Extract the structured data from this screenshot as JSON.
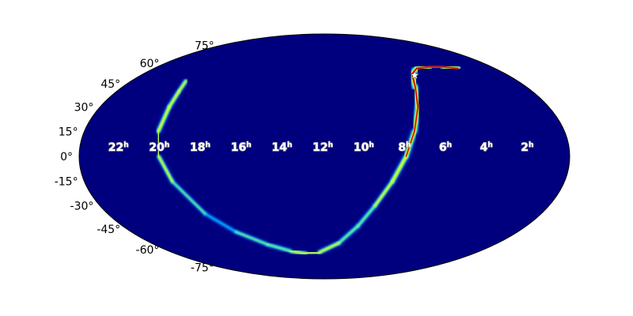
{
  "chart_data": {
    "type": "heatmap",
    "projection": "mollweide",
    "title": "",
    "xlabel": "",
    "ylabel": "",
    "x_axis": {
      "quantity": "right ascension (hours)",
      "direction": "decreasing to the right",
      "ticks": [
        22,
        20,
        18,
        16,
        14,
        12,
        10,
        8,
        6,
        4,
        2
      ],
      "tick_labels": [
        {
          "main": "22",
          "sup": "h"
        },
        {
          "main": "20",
          "sup": "h"
        },
        {
          "main": "18",
          "sup": "h"
        },
        {
          "main": "16",
          "sup": "h"
        },
        {
          "main": "14",
          "sup": "h"
        },
        {
          "main": "12",
          "sup": "h"
        },
        {
          "main": "10",
          "sup": "h"
        },
        {
          "main": "8",
          "sup": "h"
        },
        {
          "main": "6",
          "sup": "h"
        },
        {
          "main": "4",
          "sup": "h"
        },
        {
          "main": "2",
          "sup": "h"
        }
      ],
      "range": [
        24,
        0
      ]
    },
    "y_axis": {
      "quantity": "declination (degrees)",
      "ticks": [
        75,
        60,
        45,
        30,
        15,
        0,
        -15,
        -30,
        -45,
        -60,
        -75
      ],
      "tick_labels": [
        "75°",
        "60°",
        "45°",
        "30°",
        "15°",
        "0°",
        "-15°",
        "-30°",
        "-45°",
        "-60°",
        "-75°"
      ],
      "range": [
        -90,
        90
      ]
    },
    "grid": false,
    "colormap": "jet",
    "background_color": "#00007f",
    "band": {
      "description": "probability ring",
      "points": [
        {
          "ra": 2.6,
          "dec": 56,
          "w": 0.9
        },
        {
          "ra": 3.5,
          "dec": 57,
          "w": 0.9
        },
        {
          "ra": 4.5,
          "dec": 57,
          "w": 1.0
        },
        {
          "ra": 5.5,
          "dec": 56,
          "w": 1.0
        },
        {
          "ra": 6.2,
          "dec": 52,
          "w": 1.0
        },
        {
          "ra": 6.6,
          "dec": 43,
          "w": 1.0
        },
        {
          "ra": 7.0,
          "dec": 30,
          "w": 0.9
        },
        {
          "ra": 7.5,
          "dec": 15,
          "w": 0.85
        },
        {
          "ra": 8.0,
          "dec": 0,
          "w": 0.75
        },
        {
          "ra": 8.6,
          "dec": -15,
          "w": 0.6
        },
        {
          "ra": 9.3,
          "dec": -30,
          "w": 0.5
        },
        {
          "ra": 10.0,
          "dec": -43,
          "w": 0.45
        },
        {
          "ra": 11.0,
          "dec": -55,
          "w": 0.5
        },
        {
          "ra": 12.4,
          "dec": -62,
          "w": 0.55
        },
        {
          "ra": 13.5,
          "dec": -63,
          "w": 0.55
        },
        {
          "ra": 14.6,
          "dec": -61,
          "w": 0.5
        },
        {
          "ra": 16.0,
          "dec": -56,
          "w": 0.45
        },
        {
          "ra": 17.5,
          "dec": -47,
          "w": 0.4
        },
        {
          "ra": 18.6,
          "dec": -35,
          "w": 0.35
        },
        {
          "ra": 19.6,
          "dec": -15,
          "w": 0.45
        },
        {
          "ra": 20.1,
          "dec": 0,
          "w": 0.55
        },
        {
          "ra": 20.3,
          "dec": 15,
          "w": 0.6
        },
        {
          "ra": 20.3,
          "dec": 30,
          "w": 0.6
        },
        {
          "ra": 20.4,
          "dec": 40,
          "w": 0.55
        },
        {
          "ra": 20.6,
          "dec": 47,
          "w": 0.5
        }
      ]
    },
    "marker": {
      "symbol": "star",
      "ra": 6.1,
      "dec": 51,
      "color": "#ffffff"
    }
  }
}
